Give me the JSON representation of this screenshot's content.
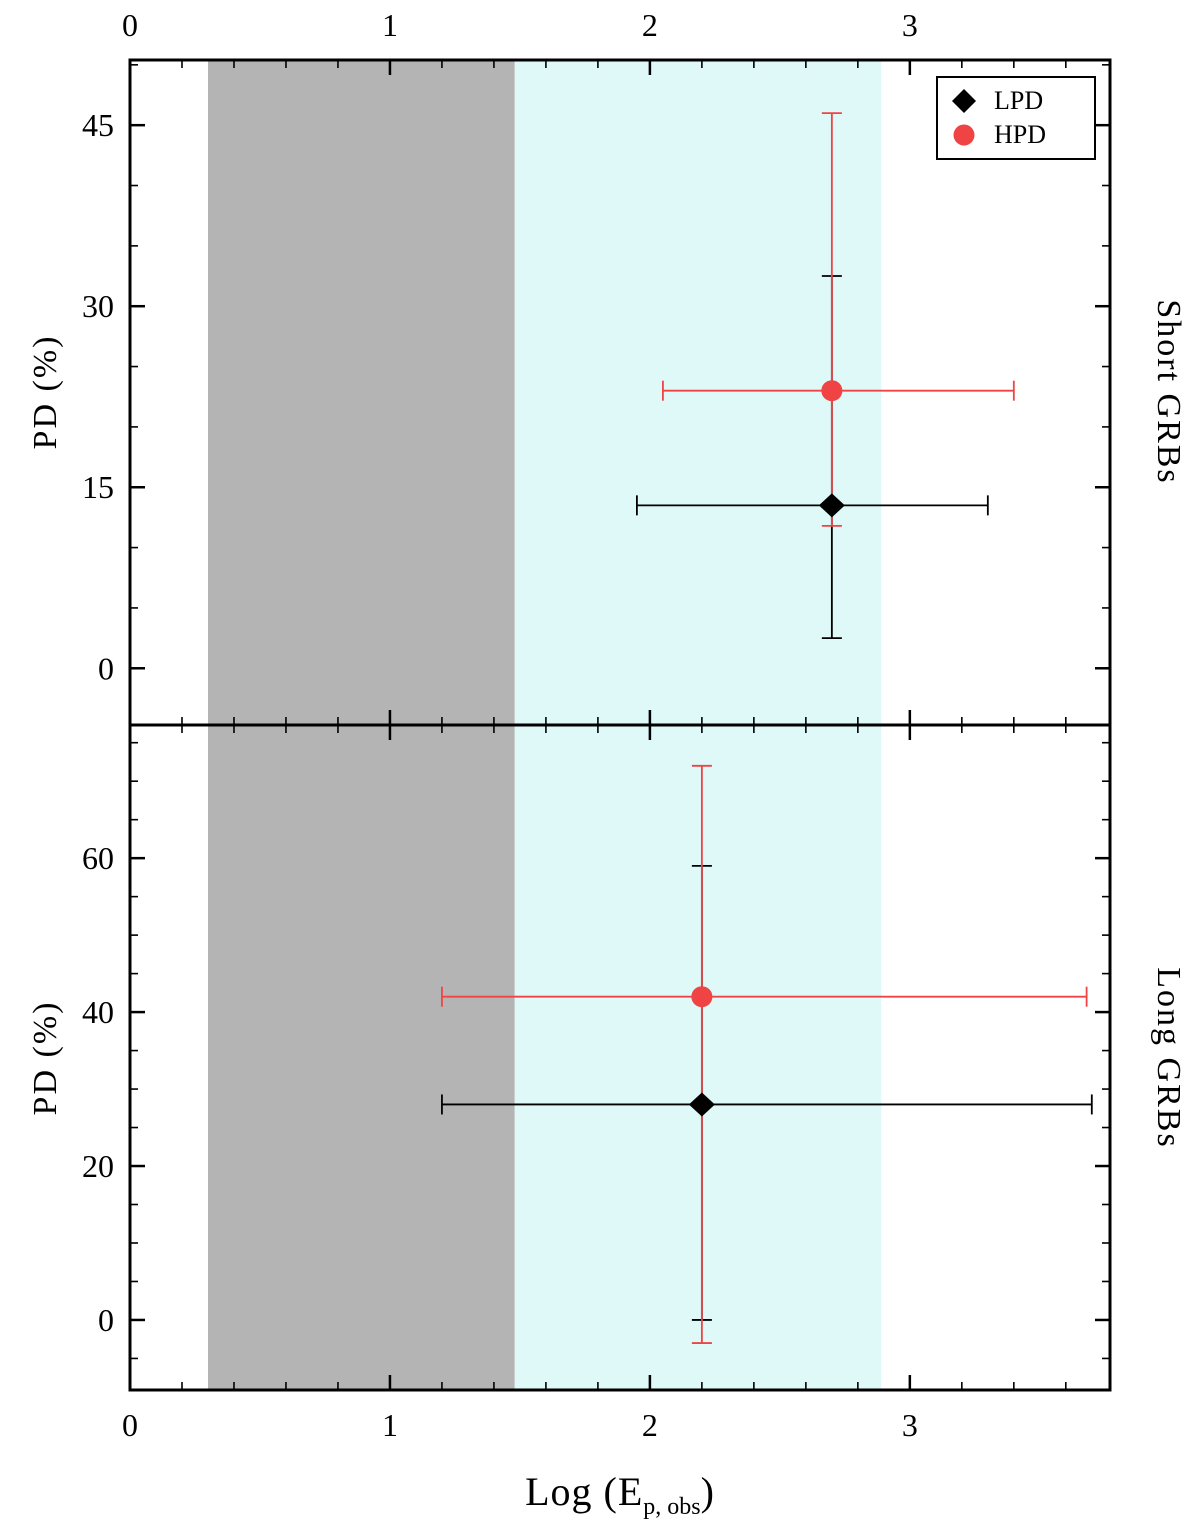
{
  "figure": {
    "xlabel": {
      "prefix": "Log (E",
      "subscript": "p, obs",
      "suffix": ")"
    },
    "panel_labels": {
      "top_right": "Short GRBs",
      "bottom_right": "Long GRBs"
    },
    "ylabel": "PD  (%)"
  },
  "legend": {
    "position": "top-right",
    "items": [
      {
        "label": "LPD",
        "marker": "diamond",
        "color": "#000000"
      },
      {
        "label": "HPD",
        "marker": "circle",
        "color": "#f04343"
      }
    ]
  },
  "chart_data": [
    {
      "type": "scatter",
      "panel": "Short GRBs",
      "ylabel": "PD (%)",
      "xlim": [
        0,
        3.77
      ],
      "ylim": [
        -4.7,
        50.4
      ],
      "xticks": [
        0,
        1,
        2,
        3
      ],
      "yticks": [
        0,
        15,
        30,
        45
      ],
      "x_minor_step": 0.2,
      "y_minor_step": 5,
      "x_tick_label_side": "top",
      "bands": [
        {
          "x0": 0.3,
          "x1": 1.48,
          "color": "#b4b4b4"
        },
        {
          "x0": 1.48,
          "x1": 2.89,
          "color": "#dff8f8"
        }
      ],
      "series": [
        {
          "name": "LPD",
          "marker": "diamond",
          "color": "#000000",
          "points": [
            {
              "x": 2.7,
              "y": 13.5,
              "xlo": 1.95,
              "xhi": 3.3,
              "ylo": 2.5,
              "yhi": 32.5
            }
          ]
        },
        {
          "name": "HPD",
          "marker": "circle",
          "color": "#f04343",
          "points": [
            {
              "x": 2.7,
              "y": 23.0,
              "xlo": 2.05,
              "xhi": 3.4,
              "ylo": 11.8,
              "yhi": 46.0
            }
          ]
        }
      ]
    },
    {
      "type": "scatter",
      "panel": "Long GRBs",
      "ylabel": "PD (%)",
      "xlim": [
        0,
        3.77
      ],
      "ylim": [
        -9.1,
        77.3
      ],
      "xticks": [
        0,
        1,
        2,
        3
      ],
      "yticks": [
        0,
        20,
        40,
        60
      ],
      "x_minor_step": 0.2,
      "y_minor_step": 5,
      "x_tick_label_side": "bottom",
      "bands": [
        {
          "x0": 0.3,
          "x1": 1.48,
          "color": "#b4b4b4"
        },
        {
          "x0": 1.48,
          "x1": 2.89,
          "color": "#dff8f8"
        }
      ],
      "series": [
        {
          "name": "LPD",
          "marker": "diamond",
          "color": "#000000",
          "points": [
            {
              "x": 2.2,
              "y": 28.0,
              "xlo": 1.2,
              "xhi": 3.7,
              "ylo": 0.0,
              "yhi": 59.0
            }
          ]
        },
        {
          "name": "HPD",
          "marker": "circle",
          "color": "#f04343",
          "points": [
            {
              "x": 2.2,
              "y": 42.0,
              "xlo": 1.2,
              "xhi": 3.68,
              "ylo": -3.0,
              "yhi": 72.0
            }
          ]
        }
      ]
    }
  ]
}
